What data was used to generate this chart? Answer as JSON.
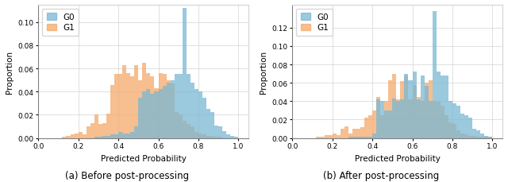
{
  "left_plot": {
    "xlabel": "Predicted Probability",
    "ylabel": "Proportion",
    "xlim": [
      0.0,
      1.05
    ],
    "ylim": [
      0.0,
      0.115
    ],
    "yticks": [
      0.0,
      0.02,
      0.04,
      0.06,
      0.08,
      0.1
    ],
    "xticks": [
      0.0,
      0.2,
      0.4,
      0.6,
      0.8,
      1.0
    ],
    "G0_bins": [
      0.28,
      0.3,
      0.32,
      0.34,
      0.36,
      0.38,
      0.4,
      0.42,
      0.44,
      0.46,
      0.48,
      0.5,
      0.52,
      0.54,
      0.56,
      0.58,
      0.6,
      0.62,
      0.64,
      0.66,
      0.68,
      0.7,
      0.72,
      0.74,
      0.76,
      0.78,
      0.8,
      0.82,
      0.84,
      0.86,
      0.88,
      0.9,
      0.92,
      0.94,
      0.96,
      0.98
    ],
    "G0_heights": [
      0.001,
      0.001,
      0.002,
      0.002,
      0.003,
      0.003,
      0.005,
      0.004,
      0.004,
      0.005,
      0.01,
      0.035,
      0.04,
      0.042,
      0.038,
      0.04,
      0.042,
      0.045,
      0.048,
      0.05,
      0.055,
      0.055,
      0.112,
      0.055,
      0.048,
      0.042,
      0.04,
      0.035,
      0.025,
      0.022,
      0.011,
      0.01,
      0.006,
      0.003,
      0.002,
      0.001
    ],
    "G1_bins": [
      0.12,
      0.14,
      0.16,
      0.18,
      0.2,
      0.22,
      0.24,
      0.26,
      0.28,
      0.3,
      0.32,
      0.34,
      0.36,
      0.38,
      0.4,
      0.42,
      0.44,
      0.46,
      0.48,
      0.5,
      0.52,
      0.54,
      0.56,
      0.58,
      0.6,
      0.62,
      0.64,
      0.66,
      0.68,
      0.7,
      0.72,
      0.74,
      0.76,
      0.78,
      0.8,
      0.82,
      0.84,
      0.86,
      0.88,
      0.9
    ],
    "G1_heights": [
      0.001,
      0.002,
      0.003,
      0.004,
      0.005,
      0.003,
      0.01,
      0.013,
      0.02,
      0.012,
      0.013,
      0.021,
      0.046,
      0.055,
      0.055,
      0.063,
      0.056,
      0.053,
      0.063,
      0.05,
      0.065,
      0.056,
      0.053,
      0.043,
      0.056,
      0.055,
      0.05,
      0.047,
      0.022,
      0.02,
      0.015,
      0.012,
      0.01,
      0.005,
      0.004,
      0.003,
      0.002,
      0.002,
      0.001,
      0.001
    ]
  },
  "right_plot": {
    "xlabel": "Predicted Probability",
    "ylabel": "Proportion",
    "xlim": [
      0.0,
      1.05
    ],
    "ylim": [
      0.0,
      0.145
    ],
    "yticks": [
      0.0,
      0.02,
      0.04,
      0.06,
      0.08,
      0.1,
      0.12
    ],
    "xticks": [
      0.0,
      0.2,
      0.4,
      0.6,
      0.8,
      1.0
    ],
    "G0_bins": [
      0.28,
      0.3,
      0.32,
      0.34,
      0.36,
      0.38,
      0.4,
      0.42,
      0.44,
      0.46,
      0.48,
      0.5,
      0.52,
      0.54,
      0.56,
      0.58,
      0.6,
      0.62,
      0.64,
      0.66,
      0.68,
      0.7,
      0.72,
      0.74,
      0.76,
      0.78,
      0.8,
      0.82,
      0.84,
      0.86,
      0.88,
      0.9,
      0.92,
      0.94,
      0.96,
      0.98
    ],
    "G0_heights": [
      0.001,
      0.001,
      0.001,
      0.001,
      0.001,
      0.001,
      0.005,
      0.042,
      0.04,
      0.03,
      0.03,
      0.043,
      0.04,
      0.042,
      0.07,
      0.063,
      0.072,
      0.042,
      0.068,
      0.057,
      0.04,
      0.138,
      0.072,
      0.068,
      0.068,
      0.04,
      0.038,
      0.035,
      0.026,
      0.025,
      0.022,
      0.01,
      0.008,
      0.005,
      0.002,
      0.001
    ],
    "G1_bins": [
      0.12,
      0.14,
      0.16,
      0.18,
      0.2,
      0.22,
      0.24,
      0.26,
      0.28,
      0.3,
      0.32,
      0.34,
      0.36,
      0.38,
      0.4,
      0.42,
      0.44,
      0.46,
      0.48,
      0.5,
      0.52,
      0.54,
      0.56,
      0.58,
      0.6,
      0.62,
      0.64,
      0.66,
      0.68,
      0.7,
      0.72,
      0.74,
      0.76,
      0.78,
      0.8,
      0.82,
      0.84,
      0.86,
      0.88,
      0.9,
      0.92,
      0.94,
      0.96,
      0.98
    ],
    "G1_heights": [
      0.001,
      0.001,
      0.003,
      0.003,
      0.005,
      0.003,
      0.01,
      0.013,
      0.005,
      0.01,
      0.01,
      0.012,
      0.022,
      0.025,
      0.03,
      0.045,
      0.025,
      0.04,
      0.063,
      0.07,
      0.042,
      0.062,
      0.068,
      0.042,
      0.058,
      0.045,
      0.04,
      0.06,
      0.063,
      0.04,
      0.039,
      0.035,
      0.025,
      0.017,
      0.015,
      0.008,
      0.005,
      0.004,
      0.002,
      0.002,
      0.001,
      0.001,
      0.001,
      0.001
    ]
  },
  "G0_color": "#7ab8d4",
  "G1_color": "#f5a96a",
  "G0_alpha": 0.75,
  "G1_alpha": 0.75,
  "bin_width": 0.02,
  "label_fontsize": 7.5,
  "tick_fontsize": 6.5,
  "legend_fontsize": 7.5,
  "caption_fontsize": 8.5,
  "caption_left": "(a) Before post-processing",
  "caption_right": "(b) After post-processing"
}
